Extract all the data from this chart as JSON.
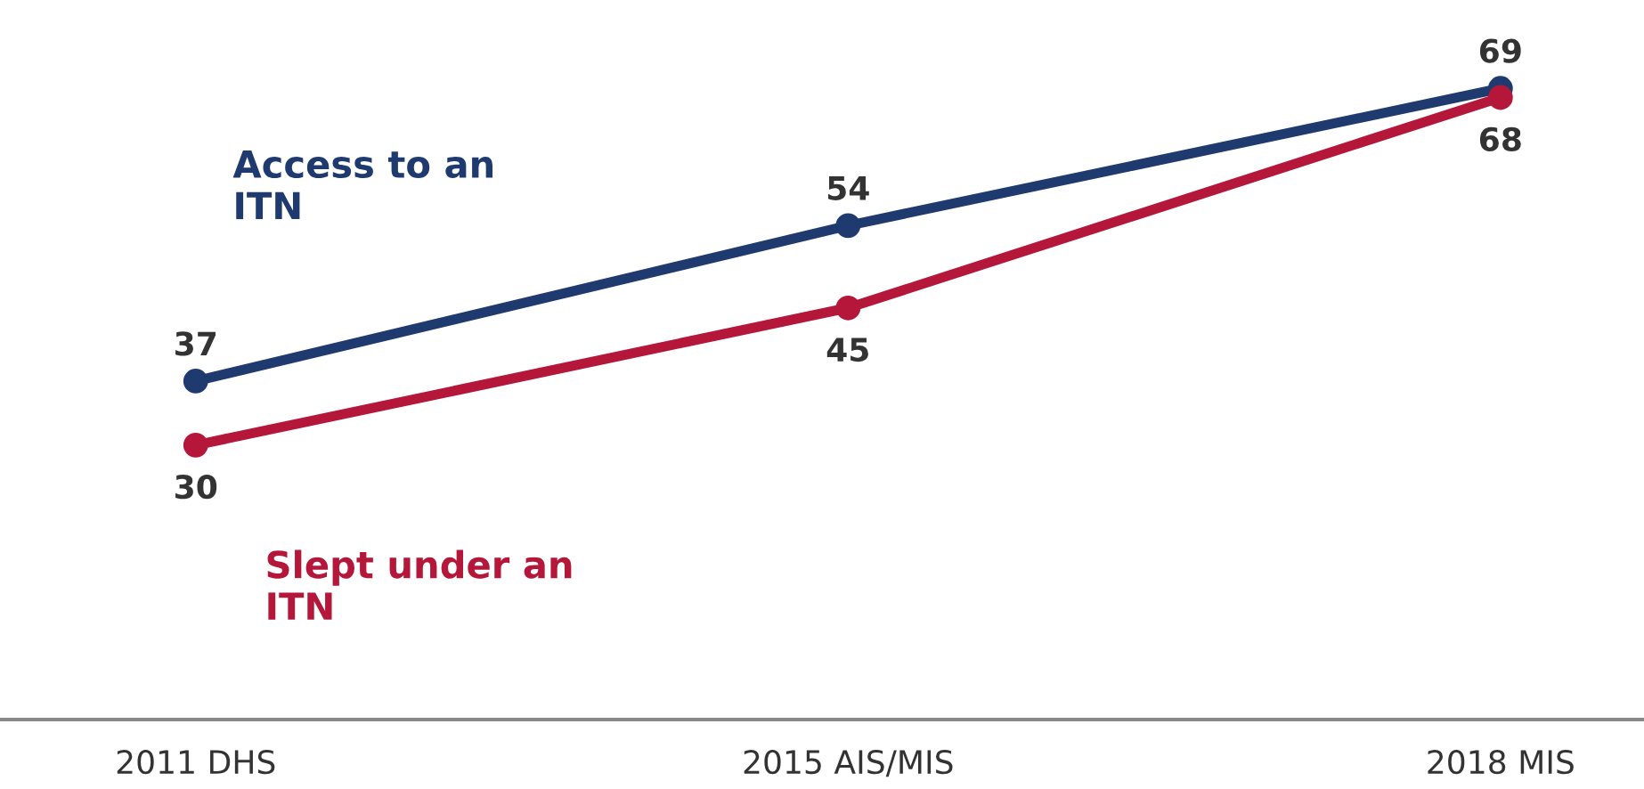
{
  "chart_data": {
    "type": "line",
    "categories": [
      "2011 DHS",
      "2015 AIS/MIS",
      "2018 MIS"
    ],
    "series": [
      {
        "name": "Access to an\nITN",
        "color": "#1f3a6e",
        "values": [
          37,
          54,
          69
        ]
      },
      {
        "name": "Slept under an\nITN",
        "color": "#b5173a",
        "values": [
          30,
          45,
          68
        ]
      }
    ],
    "data_labels": true,
    "marker": "circle",
    "line_style": "solid",
    "grid": false,
    "legend": false
  }
}
